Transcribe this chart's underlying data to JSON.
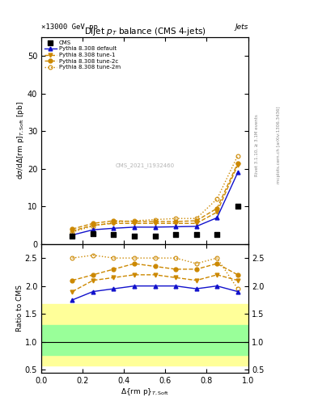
{
  "title": "Dijet $p_T$ balance (CMS 4-jets)",
  "header_left": "×13000 GeV pp",
  "header_right": "Jets",
  "rivet_label": "Rivet 3.1.10, ≥ 3.1M events",
  "mcplots_label": "mcplots.cern.ch [arXiv:1306.3436]",
  "watermark": "CMS_2021_I1932460",
  "x_values": [
    0.15,
    0.25,
    0.35,
    0.45,
    0.55,
    0.65,
    0.75,
    0.85,
    0.95
  ],
  "cms_y": [
    2.2,
    2.8,
    2.5,
    2.2,
    2.2,
    2.5,
    2.5,
    2.5,
    10.0
  ],
  "pythia_default_y": [
    2.4,
    3.8,
    4.2,
    4.5,
    4.5,
    4.6,
    4.7,
    7.0,
    19.0
  ],
  "pythia_tune1_y": [
    3.5,
    5.0,
    5.5,
    5.5,
    5.5,
    5.5,
    5.5,
    8.5,
    21.0
  ],
  "pythia_tune2c_y": [
    4.0,
    5.5,
    6.2,
    6.0,
    6.0,
    6.0,
    6.2,
    9.5,
    21.5
  ],
  "pythia_tune2m_y": [
    3.2,
    4.8,
    5.8,
    6.2,
    6.5,
    6.8,
    6.8,
    12.0,
    23.5
  ],
  "ratio_default_y": [
    1.75,
    1.9,
    1.95,
    2.0,
    2.0,
    2.0,
    1.95,
    2.0,
    1.9
  ],
  "ratio_tune1_y": [
    1.9,
    2.1,
    2.15,
    2.2,
    2.2,
    2.15,
    2.1,
    2.2,
    2.1
  ],
  "ratio_tune2c_y": [
    2.1,
    2.2,
    2.3,
    2.4,
    2.35,
    2.3,
    2.3,
    2.4,
    2.2
  ],
  "ratio_tune2m_y": [
    2.5,
    2.55,
    2.5,
    2.5,
    2.5,
    2.5,
    2.4,
    2.5,
    1.95
  ],
  "ylim_main": [
    0,
    55
  ],
  "ylim_ratio": [
    0.45,
    2.75
  ],
  "yticks_main": [
    0,
    10,
    20,
    30,
    40,
    50
  ],
  "yticks_ratio": [
    0.5,
    1.0,
    1.5,
    2.0,
    2.5
  ],
  "color_cms": "#000000",
  "color_default": "#1111cc",
  "color_tune": "#cc8800",
  "yellow_band_low": 0.58,
  "yellow_band_high": 1.68,
  "green_band_low": 0.77,
  "green_band_high": 1.3
}
